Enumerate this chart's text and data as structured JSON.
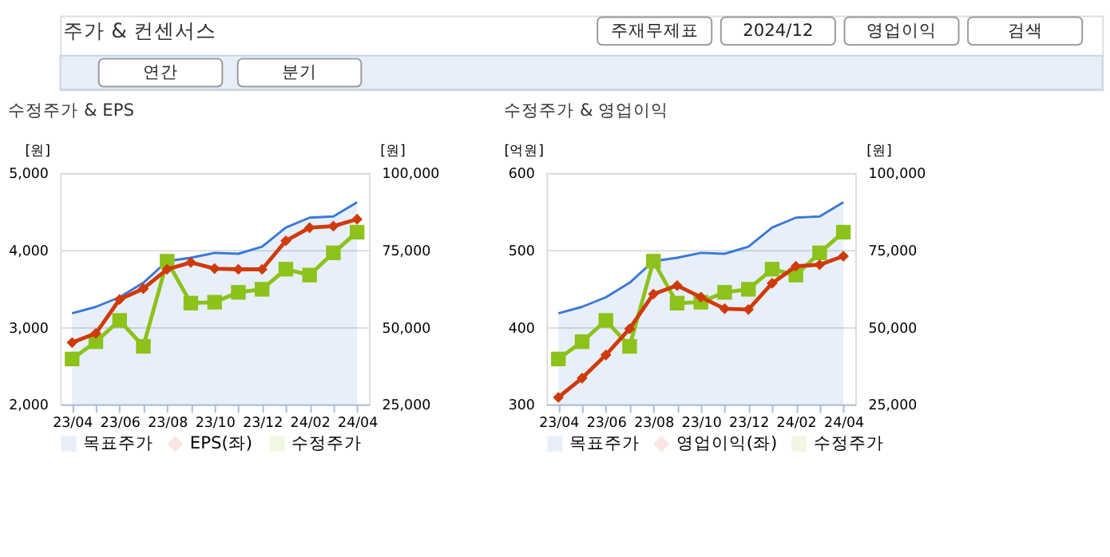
{
  "chart_data": [
    {
      "type": "other",
      "title": "주가 & 컨센서스",
      "annotations": [
        "주재무제표",
        "2024/12",
        "영업이익",
        "검색",
        "연간",
        "분기"
      ]
    },
    {
      "type": "line",
      "title": "수정주가 & EPS",
      "ylabel": "[원]",
      "y2label": "[원]",
      "categories": [
        "23/04",
        null,
        "23/06",
        null,
        "23/08",
        null,
        "23/10",
        null,
        "23/12",
        null,
        "24/02",
        null,
        "24/04"
      ],
      "ylim": [
        2000,
        5000
      ],
      "yticks": [
        {
          "value": 2000,
          "label": "2,000"
        },
        {
          "value": 3000,
          "label": "3,000"
        },
        {
          "value": 4000,
          "label": "4,000"
        },
        {
          "value": 5000,
          "label": "5,000"
        }
      ],
      "y2lim": [
        25000,
        100000
      ],
      "y2ticks": [
        {
          "value": 25000,
          "label": "25,000"
        },
        {
          "value": 50000,
          "label": "50,000"
        },
        {
          "value": 75000,
          "label": "75,000"
        },
        {
          "value": 100000,
          "label": "100,000"
        }
      ],
      "grid": "y",
      "legend": "bottom",
      "series": [
        {
          "name": "목표주가",
          "type": "area",
          "axis": "y2",
          "color": "#3a78d8",
          "values": [
            54500,
            56600,
            59700,
            64400,
            71400,
            72500,
            74100,
            73800,
            76100,
            82300,
            85500,
            85900,
            90500
          ]
        },
        {
          "name": "EPS(좌)",
          "type": "line",
          "color": "#d03a0a",
          "marker": "diamond",
          "values": [
            2800,
            2920,
            3360,
            3500,
            3750,
            3840,
            3760,
            3750,
            3750,
            4120,
            4290,
            4310,
            4400
          ]
        },
        {
          "name": "수정주가",
          "type": "line",
          "axis": "y2",
          "color": "#8cc21a",
          "marker": "square",
          "values": [
            39700,
            45300,
            52200,
            43800,
            71400,
            57800,
            58100,
            61300,
            62300,
            68800,
            66900,
            74100,
            80800
          ]
        }
      ]
    },
    {
      "type": "line",
      "title": "수정주가 & 영업이익",
      "ylabel": "[억원]",
      "y2label": "[원]",
      "categories": [
        "23/04",
        null,
        "23/06",
        null,
        "23/08",
        null,
        "23/10",
        null,
        "23/12",
        null,
        "24/02",
        null,
        "24/04"
      ],
      "ylim": [
        300,
        600
      ],
      "yticks": [
        300,
        400,
        500,
        600
      ],
      "y2lim": [
        25000,
        100000
      ],
      "y2ticks": [
        {
          "value": 25000,
          "label": "25,000"
        },
        {
          "value": 50000,
          "label": "50,000"
        },
        {
          "value": 75000,
          "label": "75,000"
        },
        {
          "value": 100000,
          "label": "100,000"
        }
      ],
      "grid": "y",
      "legend": "bottom",
      "series": [
        {
          "name": "목표주가",
          "type": "area",
          "axis": "y2",
          "color": "#3a78d8",
          "values": [
            54500,
            56600,
            59700,
            64400,
            71400,
            72500,
            74100,
            73800,
            76100,
            82300,
            85500,
            85900,
            90500
          ]
        },
        {
          "name": "영업이익(좌)",
          "type": "line",
          "color": "#d03a0a",
          "marker": "diamond",
          "values": [
            309,
            334,
            364,
            398,
            443,
            454,
            439,
            424,
            423,
            457,
            479,
            481,
            492
          ]
        },
        {
          "name": "수정주가",
          "type": "line",
          "axis": "y2",
          "color": "#8cc21a",
          "marker": "square",
          "values": [
            39700,
            45300,
            52200,
            43800,
            71400,
            57800,
            58100,
            61300,
            62300,
            68800,
            66900,
            74100,
            80800
          ]
        }
      ]
    }
  ]
}
